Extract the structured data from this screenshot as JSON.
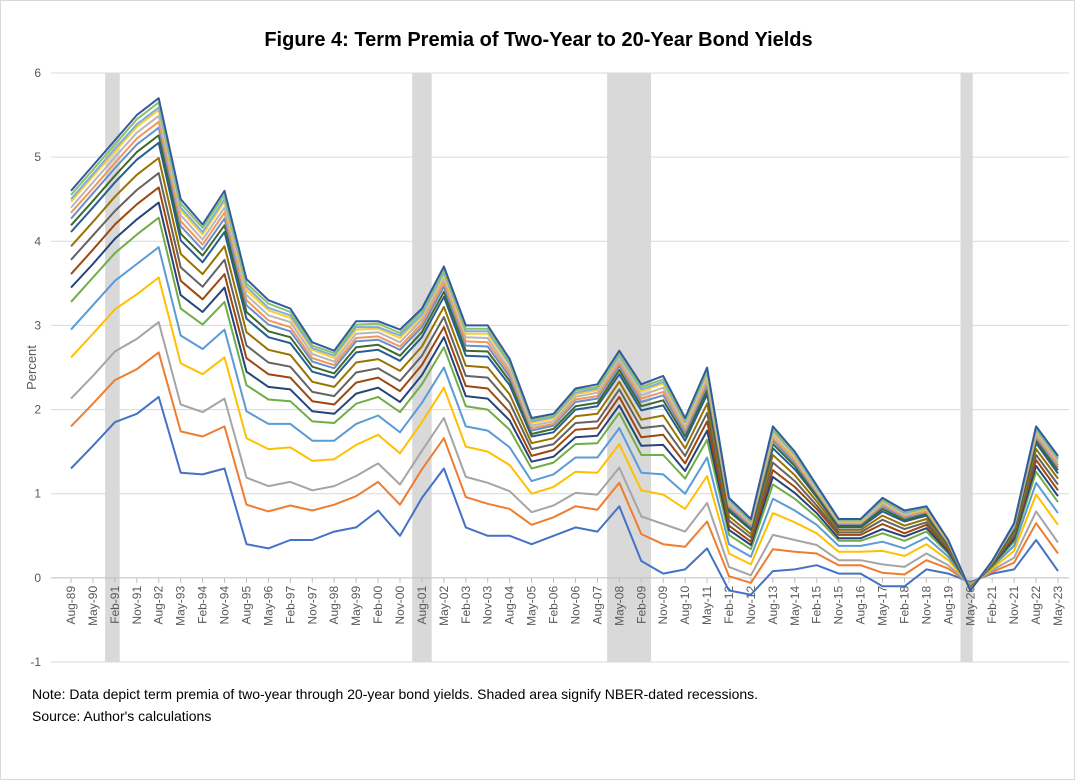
{
  "chart_data": {
    "type": "line",
    "title": "Figure 4: Term Premia of Two-Year to 20-Year Bond Yields",
    "xlabel": "",
    "ylabel": "Percent",
    "ylim": [
      -1,
      6
    ],
    "yticks": [
      "-1",
      "0",
      "1",
      "2",
      "3",
      "4",
      "5",
      "6"
    ],
    "grid": true,
    "legend": "none",
    "categories": [
      "Aug-89",
      "May-90",
      "Feb-91",
      "Nov-91",
      "Aug-92",
      "May-93",
      "Feb-94",
      "Nov-94",
      "Aug-95",
      "May-96",
      "Feb-97",
      "Nov-97",
      "Aug-98",
      "May-99",
      "Feb-00",
      "Nov-00",
      "Aug-01",
      "May-02",
      "Feb-03",
      "Nov-03",
      "Aug-04",
      "May-05",
      "Feb-06",
      "Nov-06",
      "Aug-07",
      "May-08",
      "Feb-09",
      "Nov-09",
      "Aug-10",
      "May-11",
      "Feb-12",
      "Nov-12",
      "Aug-13",
      "May-14",
      "Feb-15",
      "Nov-15",
      "Aug-16",
      "May-17",
      "Feb-18",
      "Nov-18",
      "Aug-19",
      "May-20",
      "Feb-21",
      "Nov-21",
      "Aug-22",
      "May-23"
    ],
    "recessions": [
      [
        "Oct-90",
        "Apr-91"
      ],
      [
        "Apr-01",
        "Dec-01"
      ],
      [
        "Dec-07",
        "Jun-09"
      ],
      [
        "Jan-20",
        "Jun-20"
      ]
    ],
    "recession_color": "#d9d9d9",
    "series": [
      {
        "color": "#4472C4",
        "values": [
          1.3,
          1.57,
          1.85,
          1.95,
          2.15,
          1.25,
          1.23,
          1.3,
          0.4,
          0.35,
          0.45,
          0.45,
          0.55,
          0.6,
          0.8,
          0.5,
          0.95,
          1.3,
          0.6,
          0.5,
          0.5,
          0.4,
          0.5,
          0.6,
          0.55,
          0.85,
          0.2,
          0.05,
          0.1,
          0.35,
          -0.15,
          -0.2,
          0.08,
          0.1,
          0.15,
          0.05,
          0.05,
          -0.1,
          -0.1,
          0.1,
          0.05,
          -0.05,
          0.05,
          0.1,
          0.45,
          0.08
        ]
      },
      {
        "color": "#ED7D31",
        "values": [
          1.8,
          2.07,
          2.35,
          2.48,
          2.68,
          1.74,
          1.68,
          1.8,
          0.87,
          0.79,
          0.86,
          0.8,
          0.87,
          0.97,
          1.14,
          0.87,
          1.29,
          1.66,
          0.96,
          0.88,
          0.82,
          0.63,
          0.72,
          0.85,
          0.81,
          1.13,
          0.52,
          0.4,
          0.37,
          0.67,
          0.02,
          -0.06,
          0.34,
          0.31,
          0.29,
          0.15,
          0.15,
          0.06,
          0.04,
          0.21,
          0.11,
          -0.07,
          0.07,
          0.18,
          0.65,
          0.29
        ]
      },
      {
        "color": "#A5A5A5",
        "values": [
          2.13,
          2.4,
          2.69,
          2.84,
          3.04,
          2.06,
          1.97,
          2.13,
          1.19,
          1.09,
          1.14,
          1.04,
          1.09,
          1.21,
          1.36,
          1.11,
          1.51,
          1.9,
          1.2,
          1.13,
          1.03,
          0.78,
          0.86,
          1.01,
          0.99,
          1.31,
          0.73,
          0.64,
          0.55,
          0.89,
          0.13,
          0.03,
          0.51,
          0.45,
          0.39,
          0.21,
          0.21,
          0.16,
          0.13,
          0.29,
          0.15,
          -0.08,
          0.09,
          0.24,
          0.79,
          0.42
        ]
      },
      {
        "color": "#FFC000",
        "values": [
          2.62,
          2.9,
          3.19,
          3.37,
          3.57,
          2.55,
          2.42,
          2.62,
          1.66,
          1.53,
          1.55,
          1.39,
          1.41,
          1.58,
          1.7,
          1.48,
          1.85,
          2.26,
          1.56,
          1.5,
          1.34,
          1.0,
          1.08,
          1.26,
          1.25,
          1.59,
          1.04,
          0.99,
          0.82,
          1.21,
          0.29,
          0.16,
          0.77,
          0.66,
          0.53,
          0.31,
          0.31,
          0.32,
          0.26,
          0.4,
          0.21,
          -0.09,
          0.11,
          0.32,
          0.99,
          0.63
        ]
      },
      {
        "color": "#5B9BD5",
        "values": [
          2.95,
          3.24,
          3.53,
          3.73,
          3.93,
          2.88,
          2.72,
          2.95,
          1.98,
          1.83,
          1.83,
          1.63,
          1.63,
          1.83,
          1.93,
          1.73,
          2.08,
          2.5,
          1.8,
          1.75,
          1.55,
          1.15,
          1.23,
          1.43,
          1.43,
          1.78,
          1.25,
          1.23,
          1.0,
          1.43,
          0.4,
          0.25,
          0.94,
          0.8,
          0.63,
          0.38,
          0.38,
          0.43,
          0.35,
          0.48,
          0.25,
          -0.1,
          0.13,
          0.38,
          1.13,
          0.77
        ]
      },
      {
        "color": "#70AD47",
        "values": [
          3.28,
          3.57,
          3.86,
          4.08,
          4.28,
          3.2,
          3.01,
          3.28,
          2.29,
          2.12,
          2.1,
          1.86,
          1.84,
          2.07,
          2.15,
          1.97,
          2.3,
          2.74,
          2.04,
          2.0,
          1.76,
          1.3,
          1.37,
          1.59,
          1.6,
          1.96,
          1.46,
          1.46,
          1.18,
          1.64,
          0.51,
          0.34,
          1.11,
          0.94,
          0.72,
          0.44,
          0.44,
          0.53,
          0.44,
          0.55,
          0.29,
          -0.11,
          0.14,
          0.43,
          1.26,
          0.9
        ]
      },
      {
        "color": "#264478",
        "values": [
          3.45,
          3.73,
          4.03,
          4.26,
          4.46,
          3.36,
          3.16,
          3.45,
          2.45,
          2.27,
          2.24,
          1.98,
          1.95,
          2.19,
          2.26,
          2.09,
          2.41,
          2.86,
          2.16,
          2.13,
          1.87,
          1.38,
          1.44,
          1.67,
          1.69,
          2.05,
          1.57,
          1.58,
          1.27,
          1.75,
          0.57,
          0.39,
          1.2,
          1.01,
          0.77,
          0.47,
          0.47,
          0.58,
          0.49,
          0.59,
          0.31,
          -0.12,
          0.15,
          0.46,
          1.33,
          0.97
        ]
      },
      {
        "color": "#9E480E",
        "values": [
          3.61,
          3.9,
          4.2,
          4.44,
          4.64,
          3.53,
          3.31,
          3.61,
          2.61,
          2.42,
          2.38,
          2.1,
          2.06,
          2.32,
          2.38,
          2.22,
          2.53,
          2.98,
          2.28,
          2.25,
          1.97,
          1.45,
          1.52,
          1.76,
          1.78,
          2.15,
          1.67,
          1.7,
          1.36,
          1.86,
          0.62,
          0.43,
          1.28,
          1.08,
          0.82,
          0.51,
          0.51,
          0.64,
          0.53,
          0.63,
          0.33,
          -0.12,
          0.16,
          0.49,
          1.4,
          1.04
        ]
      },
      {
        "color": "#636363",
        "values": [
          3.78,
          4.07,
          4.36,
          4.61,
          4.81,
          3.69,
          3.46,
          3.78,
          2.76,
          2.56,
          2.51,
          2.21,
          2.16,
          2.44,
          2.49,
          2.34,
          2.64,
          3.1,
          2.4,
          2.38,
          2.08,
          1.53,
          1.59,
          1.84,
          1.86,
          2.24,
          1.78,
          1.81,
          1.45,
          1.96,
          0.68,
          0.48,
          1.37,
          1.15,
          0.86,
          0.54,
          0.54,
          0.69,
          0.58,
          0.66,
          0.35,
          -0.13,
          0.16,
          0.51,
          1.46,
          1.11
        ]
      },
      {
        "color": "#997300",
        "values": [
          3.94,
          4.23,
          4.53,
          4.79,
          4.99,
          3.85,
          3.61,
          3.94,
          2.92,
          2.71,
          2.65,
          2.33,
          2.27,
          2.56,
          2.6,
          2.46,
          2.75,
          3.22,
          2.52,
          2.5,
          2.18,
          1.6,
          1.66,
          1.92,
          1.95,
          2.33,
          1.88,
          1.93,
          1.54,
          2.07,
          0.73,
          0.52,
          1.46,
          1.22,
          0.91,
          0.57,
          0.57,
          0.74,
          0.62,
          0.7,
          0.37,
          -0.13,
          0.17,
          0.54,
          1.53,
          1.18
        ]
      },
      {
        "color": "#255E91",
        "values": [
          4.11,
          4.4,
          4.7,
          4.97,
          5.17,
          4.01,
          3.75,
          4.11,
          3.08,
          2.86,
          2.79,
          2.45,
          2.38,
          2.68,
          2.71,
          2.58,
          2.86,
          3.34,
          2.64,
          2.63,
          2.29,
          1.68,
          1.73,
          2.0,
          2.04,
          2.42,
          1.99,
          2.05,
          1.63,
          2.18,
          0.79,
          0.57,
          1.54,
          1.29,
          0.96,
          0.6,
          0.6,
          0.79,
          0.67,
          0.74,
          0.39,
          -0.14,
          0.18,
          0.57,
          1.6,
          1.24
        ]
      },
      {
        "color": "#43682B",
        "values": [
          4.19,
          4.48,
          4.78,
          5.06,
          5.26,
          4.09,
          3.83,
          4.19,
          3.16,
          2.93,
          2.86,
          2.51,
          2.43,
          2.74,
          2.77,
          2.64,
          2.92,
          3.4,
          2.7,
          2.69,
          2.34,
          1.71,
          1.77,
          2.04,
          2.08,
          2.47,
          2.04,
          2.11,
          1.68,
          2.23,
          0.81,
          0.59,
          1.59,
          1.33,
          0.98,
          0.62,
          0.62,
          0.82,
          0.69,
          0.76,
          0.4,
          -0.14,
          0.18,
          0.58,
          1.63,
          1.28
        ]
      },
      {
        "color": "#698ED0",
        "values": [
          4.27,
          4.57,
          4.87,
          5.15,
          5.35,
          4.18,
          3.9,
          4.27,
          3.24,
          3.01,
          2.93,
          2.57,
          2.49,
          2.81,
          2.83,
          2.71,
          2.98,
          3.46,
          2.76,
          2.75,
          2.39,
          1.75,
          1.81,
          2.09,
          2.13,
          2.52,
          2.09,
          2.17,
          1.72,
          2.29,
          0.84,
          0.61,
          1.63,
          1.36,
          1.01,
          0.64,
          0.64,
          0.85,
          0.71,
          0.78,
          0.41,
          -0.14,
          0.19,
          0.6,
          1.67,
          1.31
        ]
      },
      {
        "color": "#F1975A",
        "values": [
          4.34,
          4.63,
          4.93,
          5.22,
          5.42,
          4.24,
          3.96,
          4.34,
          3.3,
          3.06,
          2.98,
          2.61,
          2.53,
          2.85,
          2.87,
          2.75,
          3.02,
          3.51,
          2.81,
          2.8,
          2.43,
          1.78,
          1.83,
          2.12,
          2.16,
          2.55,
          2.13,
          2.21,
          1.76,
          2.33,
          0.86,
          0.63,
          1.66,
          1.39,
          1.02,
          0.65,
          0.65,
          0.87,
          0.73,
          0.79,
          0.42,
          -0.14,
          0.19,
          0.61,
          1.69,
          1.34
        ]
      },
      {
        "color": "#B7B7B7",
        "values": [
          4.4,
          4.7,
          5.0,
          5.29,
          5.49,
          4.31,
          4.02,
          4.4,
          3.36,
          3.12,
          3.04,
          2.66,
          2.57,
          2.9,
          2.92,
          2.8,
          3.07,
          3.56,
          2.86,
          2.85,
          2.47,
          1.81,
          1.86,
          2.15,
          2.2,
          2.59,
          2.17,
          2.26,
          1.79,
          2.37,
          0.88,
          0.65,
          1.7,
          1.42,
          1.04,
          0.66,
          0.66,
          0.89,
          0.75,
          0.81,
          0.43,
          -0.14,
          0.19,
          0.62,
          1.72,
          1.37
        ]
      },
      {
        "color": "#FFCD33",
        "values": [
          4.47,
          4.77,
          5.07,
          5.36,
          5.56,
          4.37,
          4.08,
          4.47,
          3.42,
          3.18,
          3.09,
          2.71,
          2.61,
          2.95,
          2.96,
          2.85,
          3.11,
          3.6,
          2.9,
          2.9,
          2.52,
          1.84,
          1.89,
          2.18,
          2.23,
          2.63,
          2.22,
          2.31,
          1.83,
          2.41,
          0.91,
          0.66,
          1.73,
          1.44,
          1.06,
          0.67,
          0.67,
          0.91,
          0.76,
          0.82,
          0.43,
          -0.15,
          0.19,
          0.63,
          1.75,
          1.4
        ]
      },
      {
        "color": "#7CAFDD",
        "values": [
          4.5,
          4.8,
          5.1,
          5.39,
          5.59,
          4.4,
          4.11,
          4.5,
          3.46,
          3.21,
          3.12,
          2.73,
          2.64,
          2.98,
          2.98,
          2.88,
          3.13,
          3.63,
          2.93,
          2.93,
          2.54,
          1.86,
          1.91,
          2.2,
          2.25,
          2.64,
          2.24,
          2.33,
          1.85,
          2.44,
          0.92,
          0.67,
          1.75,
          1.46,
          1.07,
          0.68,
          0.68,
          0.92,
          0.77,
          0.83,
          0.44,
          -0.15,
          0.2,
          0.63,
          1.76,
          1.41
        ]
      },
      {
        "color": "#8CC168",
        "values": [
          4.55,
          4.85,
          5.15,
          5.45,
          5.65,
          4.45,
          4.16,
          4.55,
          3.5,
          3.26,
          3.16,
          2.76,
          2.67,
          3.01,
          3.02,
          2.91,
          3.17,
          3.66,
          2.96,
          2.96,
          2.57,
          1.88,
          1.93,
          2.23,
          2.27,
          2.67,
          2.27,
          2.36,
          1.87,
          2.47,
          0.93,
          0.69,
          1.77,
          1.48,
          1.09,
          0.69,
          0.69,
          0.93,
          0.79,
          0.84,
          0.44,
          -0.15,
          0.2,
          0.64,
          1.78,
          1.43
        ]
      },
      {
        "color": "#335AA1",
        "values": [
          4.6,
          4.9,
          5.2,
          5.5,
          5.7,
          4.5,
          4.2,
          4.6,
          3.55,
          3.3,
          3.2,
          2.8,
          2.7,
          3.05,
          3.05,
          2.95,
          3.2,
          3.7,
          3.0,
          3.0,
          2.6,
          1.9,
          1.95,
          2.25,
          2.3,
          2.7,
          2.3,
          2.4,
          1.9,
          2.5,
          0.95,
          0.7,
          1.8,
          1.5,
          1.1,
          0.7,
          0.7,
          0.95,
          0.8,
          0.85,
          0.45,
          -0.15,
          0.2,
          0.65,
          1.8,
          1.45
        ]
      }
    ],
    "note": "Note: Data depict term premia of two-year through 20-year bond yields. Shaded area signify NBER-dated recessions.",
    "source": "Source: Author's calculations"
  }
}
